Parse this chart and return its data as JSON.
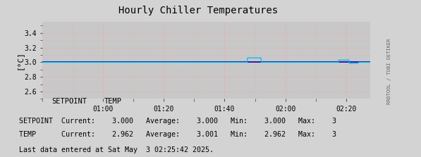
{
  "title": "Hourly Chiller Temperatures",
  "ylabel": "[°C]",
  "ylim": [
    2.5,
    3.55
  ],
  "yticks": [
    2.6,
    2.8,
    3.0,
    3.2,
    3.4
  ],
  "bg_color": "#d3d3d3",
  "plot_bg_color": "#c8c8c8",
  "grid_color": "#ff9999",
  "setpoint_color": "#0000bb",
  "temp_color": "#00bbee",
  "arrow_color": "#bb0000",
  "title_color": "#000000",
  "setpoint_value": 3.0,
  "xmin": 40,
  "xmax": 148,
  "xtick_positions": [
    60,
    80,
    100,
    120,
    140
  ],
  "xtick_labels": [
    "01:00",
    "01:20",
    "01:40",
    "02:00",
    "02:20"
  ],
  "sidebar_text": "RRDTOOL / TOBI OETIKER",
  "legend_setpoint_label": "SETPOINT",
  "legend_temp_label": "TEMP",
  "footer_text": "Last data entered at Sat May  3 02:25:42 2025."
}
